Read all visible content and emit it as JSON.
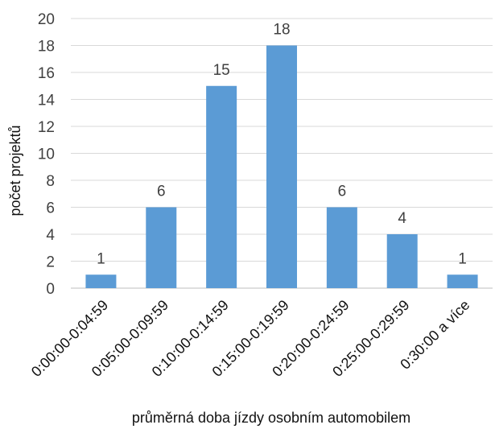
{
  "chart_data": {
    "type": "bar",
    "categories": [
      "0:00:00-0:04:59",
      "0:05:00-0:09:59",
      "0:10:00-0:14:59",
      "0:15:00-0:19:59",
      "0:20:00-0:24:59",
      "0:25:00-0:29:59",
      "0:30:00 a více"
    ],
    "values": [
      1,
      6,
      15,
      18,
      6,
      4,
      1
    ],
    "xlabel": "průměrná doba jízdy osobním automobilem",
    "ylabel": "počet projektů",
    "ylim": [
      0,
      20
    ],
    "yticks": [
      0,
      2,
      4,
      6,
      8,
      10,
      12,
      14,
      16,
      18,
      20
    ],
    "grid": true,
    "data_labels": true,
    "bar_color": "#5B9BD5",
    "grid_color": "#D9D9D9"
  }
}
